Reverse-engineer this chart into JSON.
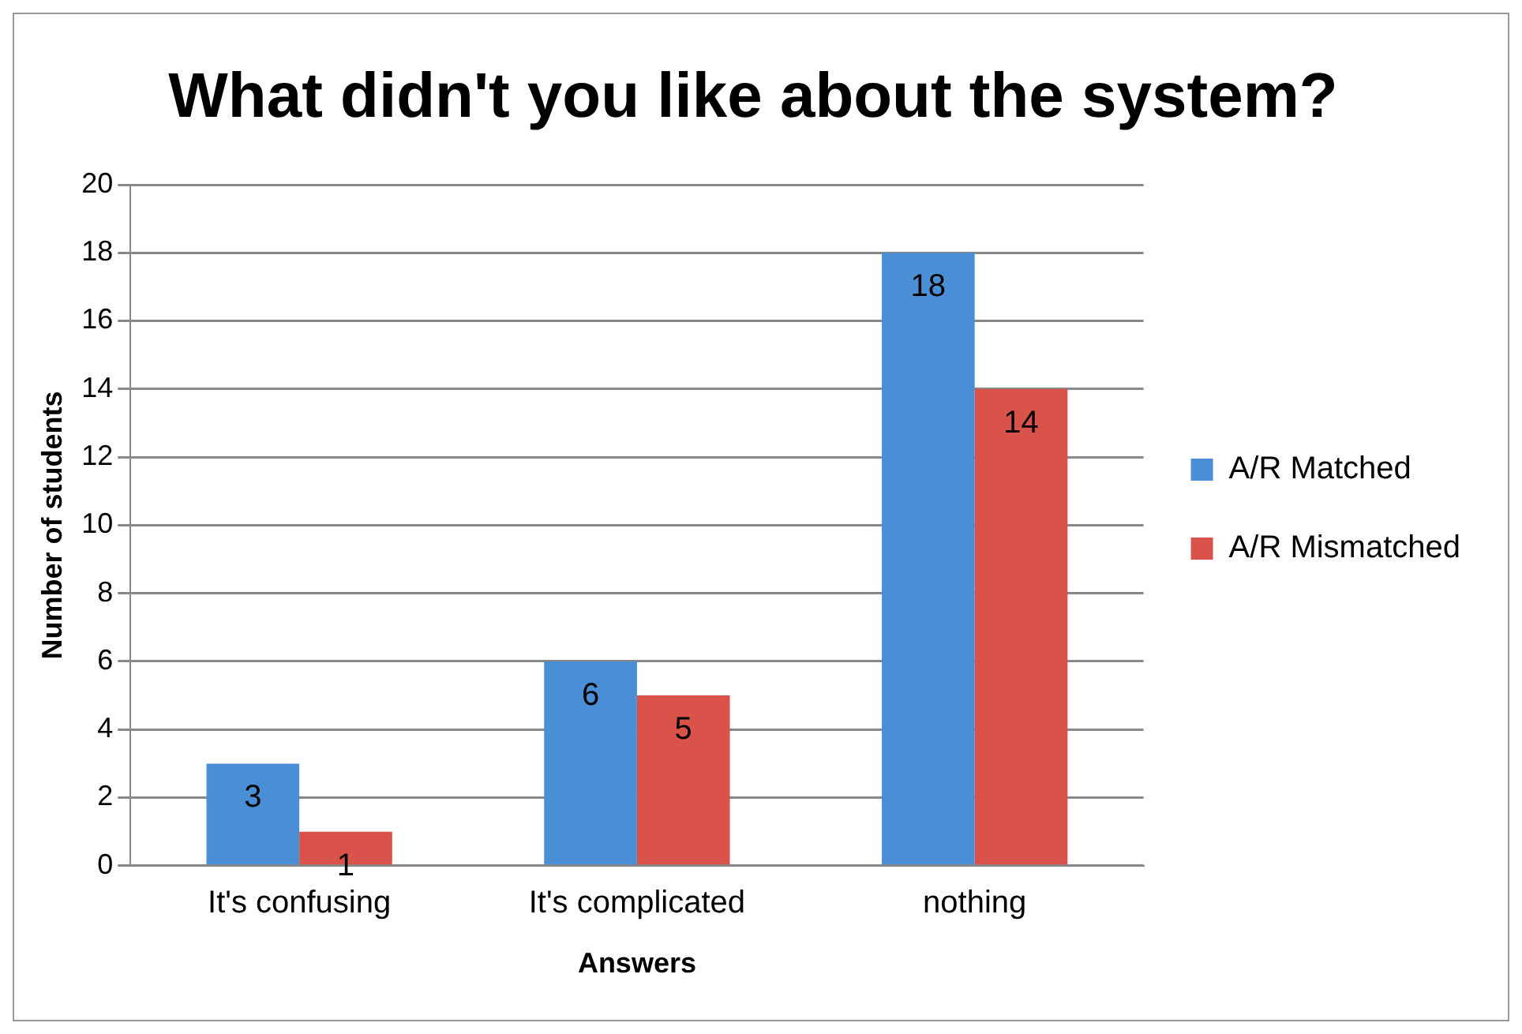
{
  "chart_data": {
    "type": "bar",
    "title": "What didn't you like about the system?",
    "xlabel": "Answers",
    "ylabel": "Number of students",
    "categories": [
      "It's confusing",
      "It's complicated",
      "nothing"
    ],
    "series": [
      {
        "name": "A/R Matched",
        "color": "#4a8fd6",
        "values": [
          3,
          6,
          18
        ]
      },
      {
        "name": "A/R Mismatched",
        "color": "#d9534a",
        "values": [
          1,
          5,
          14
        ]
      }
    ],
    "ylim": [
      0,
      20
    ],
    "yticks": [
      0,
      2,
      4,
      6,
      8,
      10,
      12,
      14,
      16,
      18,
      20
    ],
    "grid": "y",
    "legend": "right",
    "data_labels": true
  }
}
